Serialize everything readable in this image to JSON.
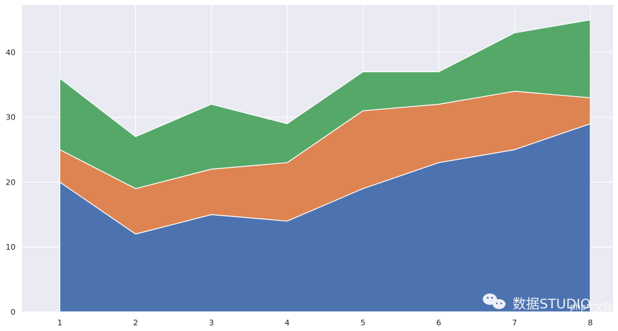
{
  "chart_data": {
    "type": "area",
    "stacked": true,
    "title": "",
    "xlabel": "",
    "ylabel": "",
    "x": [
      1,
      2,
      3,
      4,
      5,
      6,
      7,
      8
    ],
    "series": [
      {
        "color": "#4c72b0",
        "values": [
          20,
          12,
          15,
          14,
          19,
          23,
          25,
          29
        ]
      },
      {
        "color": "#dd8452",
        "values": [
          5,
          7,
          7,
          9,
          12,
          9,
          9,
          4
        ]
      },
      {
        "color": "#55a868",
        "values": [
          11,
          8,
          10,
          6,
          6,
          5,
          9,
          12
        ]
      }
    ],
    "xlim": [
      0.5,
      8.3
    ],
    "ylim": [
      0,
      47.3
    ],
    "xticks": [
      1,
      2,
      3,
      4,
      5,
      6,
      7,
      8
    ],
    "yticks": [
      0,
      10,
      20,
      30,
      40
    ],
    "grid": true,
    "background": "#eaeaf2"
  },
  "watermark": {
    "text": "数据STUDIO",
    "site": "php中文网",
    "icon": "wechat-icon"
  }
}
